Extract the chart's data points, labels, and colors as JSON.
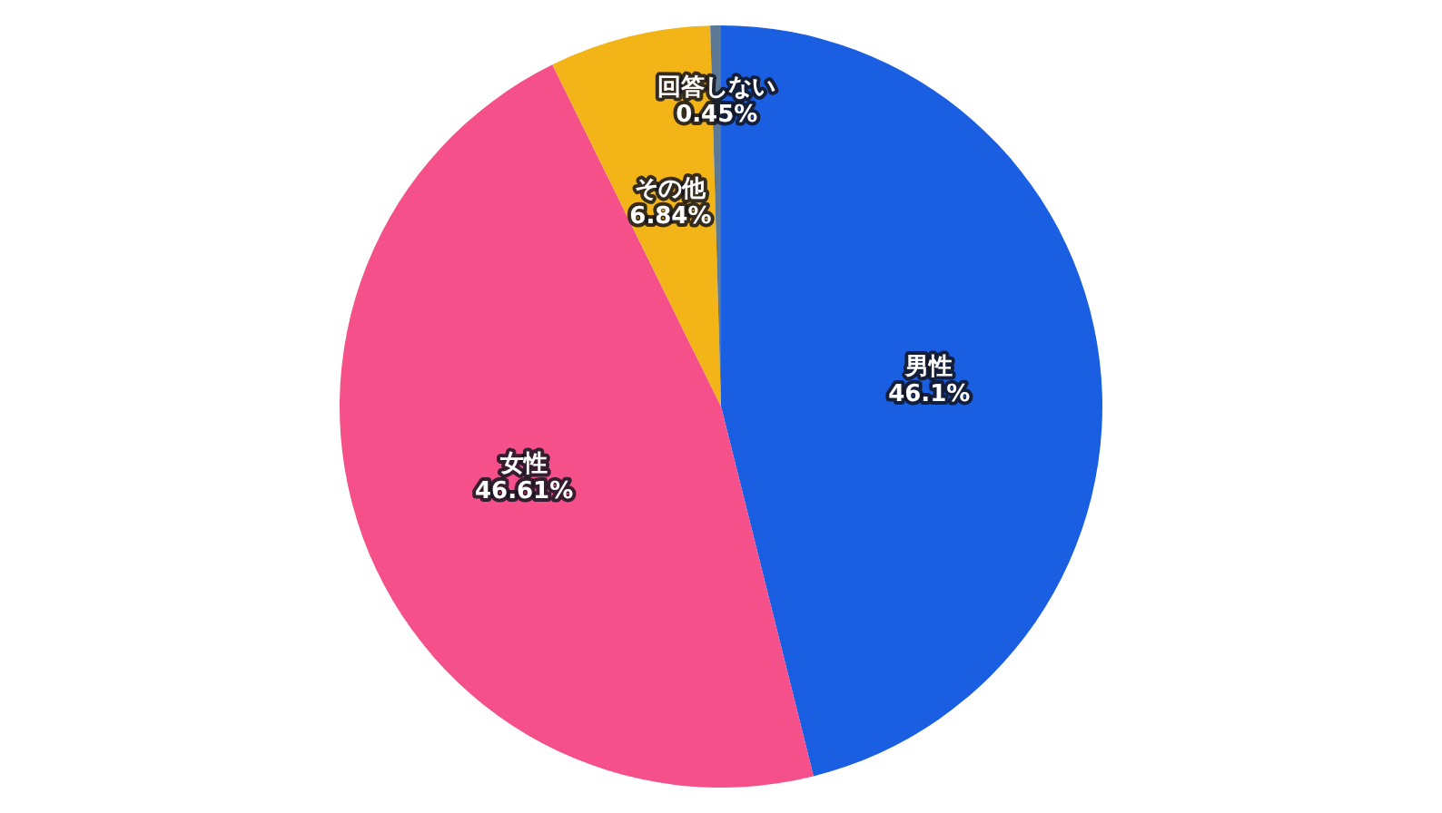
{
  "chart_data": {
    "type": "pie",
    "categories": [
      "男性",
      "女性",
      "その他",
      "回答しない"
    ],
    "values": [
      46.1,
      46.61,
      6.84,
      0.45
    ],
    "colors": [
      "#1a5ee2",
      "#f5508a",
      "#f2b416",
      "#5b7896"
    ],
    "value_labels": [
      "46.1%",
      "46.61%",
      "6.84%",
      "0.45%"
    ]
  }
}
